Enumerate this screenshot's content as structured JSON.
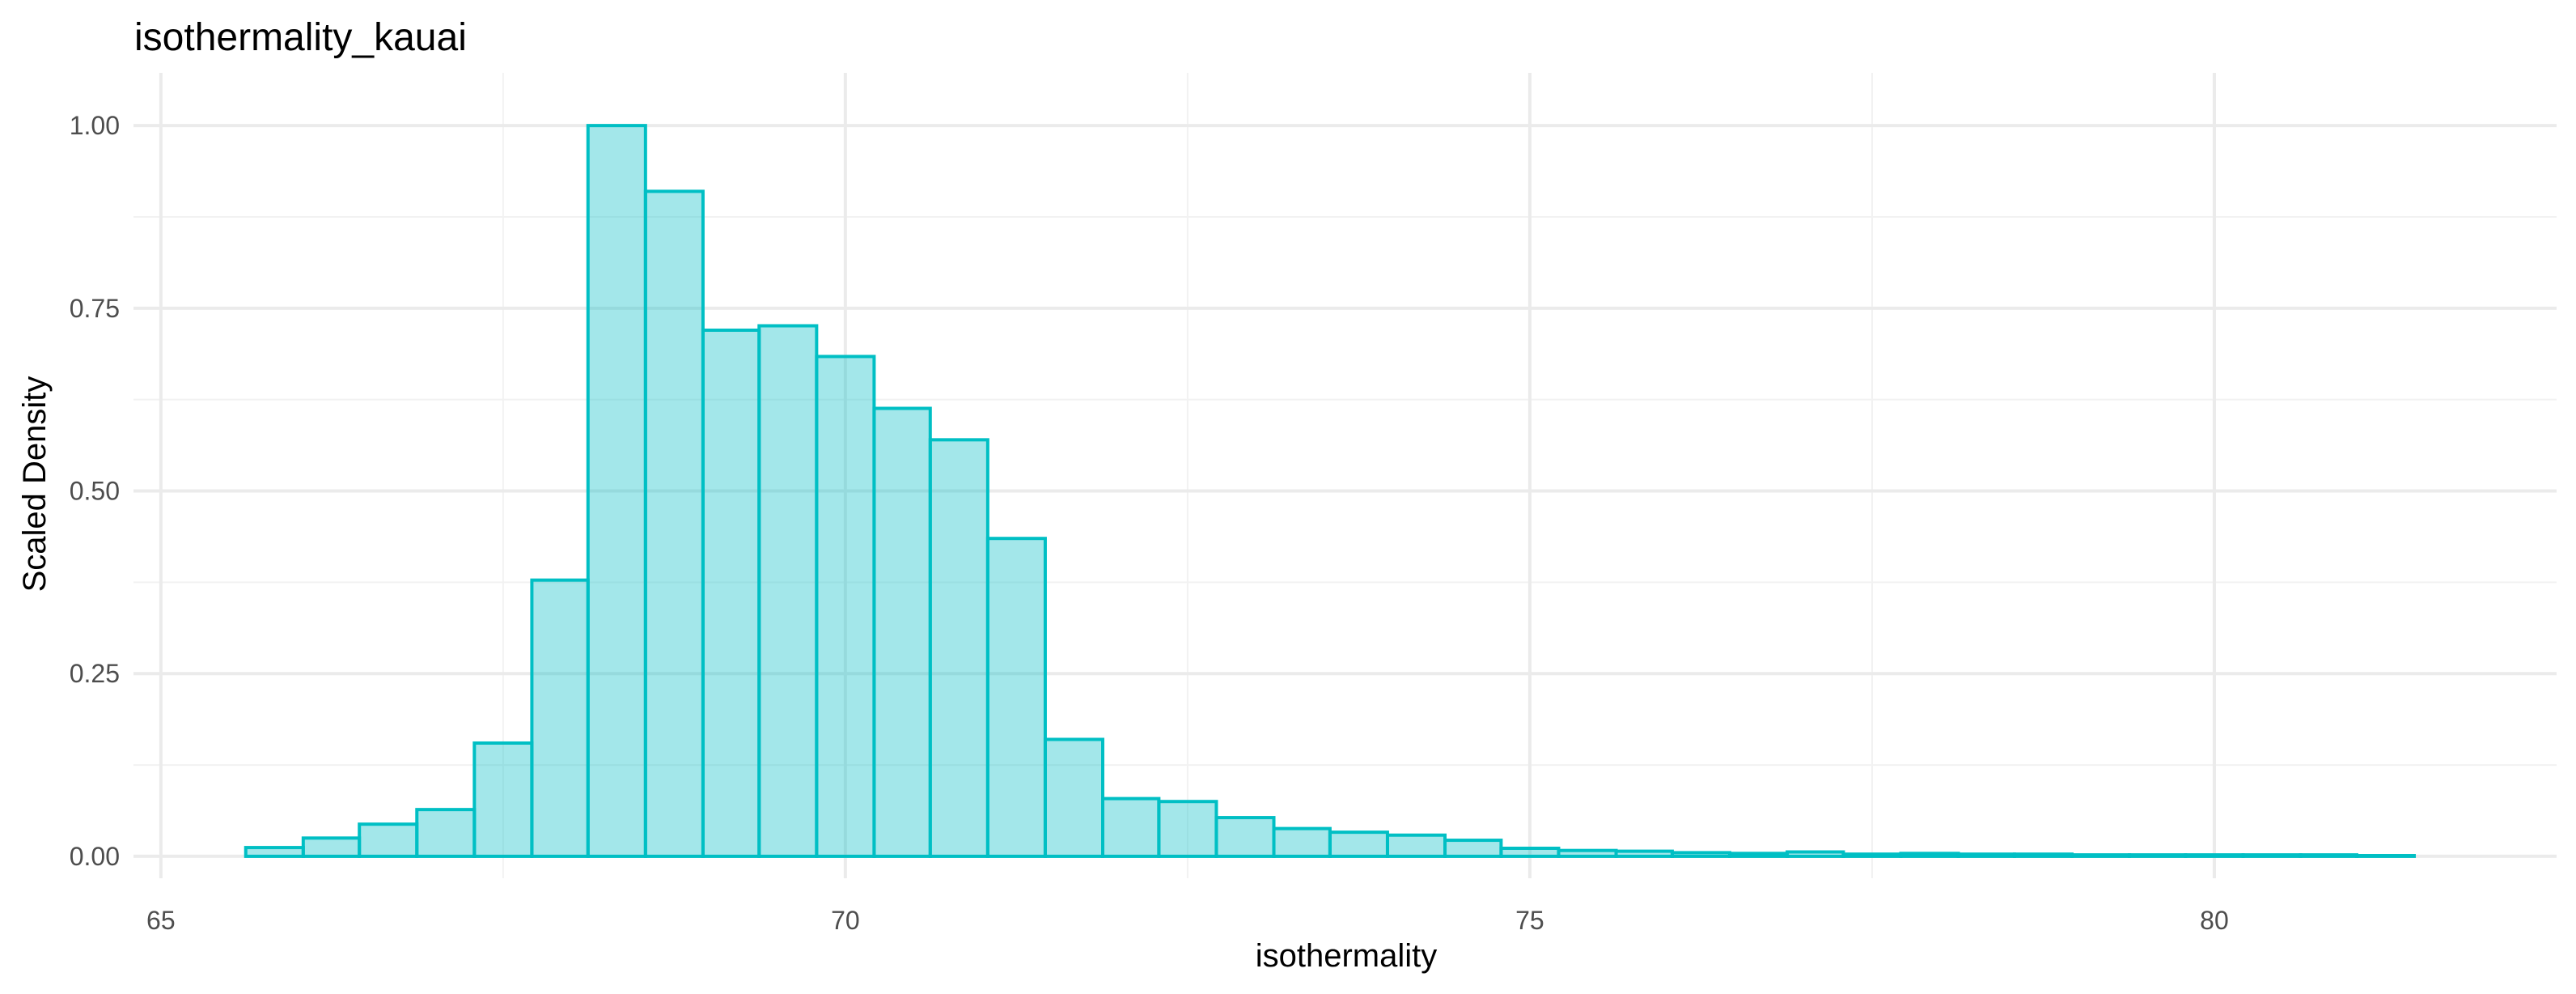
{
  "chart_data": {
    "type": "bar",
    "title": "isothermality_kauai",
    "xlabel": "isothermality",
    "ylabel": "Scaled Density",
    "xlim": [
      64.8,
      82.5
    ],
    "ylim": [
      -0.03,
      1.05
    ],
    "x_ticks": [
      65,
      70,
      75,
      80
    ],
    "x_tick_labels": [
      "65",
      "70",
      "75",
      "80"
    ],
    "y_ticks": [
      0,
      0.25,
      0.5,
      0.75,
      1.0
    ],
    "y_tick_labels": [
      "0.00",
      "0.25",
      "0.50",
      "0.75",
      "1.00"
    ],
    "grid": true,
    "legend": "none",
    "bin_edges": [
      65.62,
      66.04,
      66.45,
      66.87,
      67.29,
      67.71,
      68.12,
      68.54,
      68.96,
      69.37,
      69.79,
      70.21,
      70.62,
      71.04,
      71.46,
      71.88,
      72.29,
      72.71,
      73.13,
      73.54,
      73.96,
      74.38,
      74.79,
      75.21,
      75.63,
      76.04,
      76.46,
      76.88,
      77.29,
      77.71,
      78.13,
      78.54,
      78.96,
      79.38,
      79.79,
      80.21,
      80.63,
      81.04,
      81.46
    ],
    "values": [
      0.012,
      0.025,
      0.044,
      0.064,
      0.155,
      0.378,
      1.0,
      0.91,
      0.72,
      0.726,
      0.684,
      0.613,
      0.57,
      0.435,
      0.16,
      0.079,
      0.075,
      0.053,
      0.038,
      0.033,
      0.029,
      0.022,
      0.011,
      0.008,
      0.007,
      0.005,
      0.004,
      0.006,
      0.003,
      0.004,
      0.003,
      0.003,
      0.002,
      0.002,
      0.002,
      0.002,
      0.002,
      0.001
    ],
    "colors": {
      "fill": "#00bcc5",
      "fill_opacity": 0.36,
      "stroke": "#00bfc4"
    }
  }
}
